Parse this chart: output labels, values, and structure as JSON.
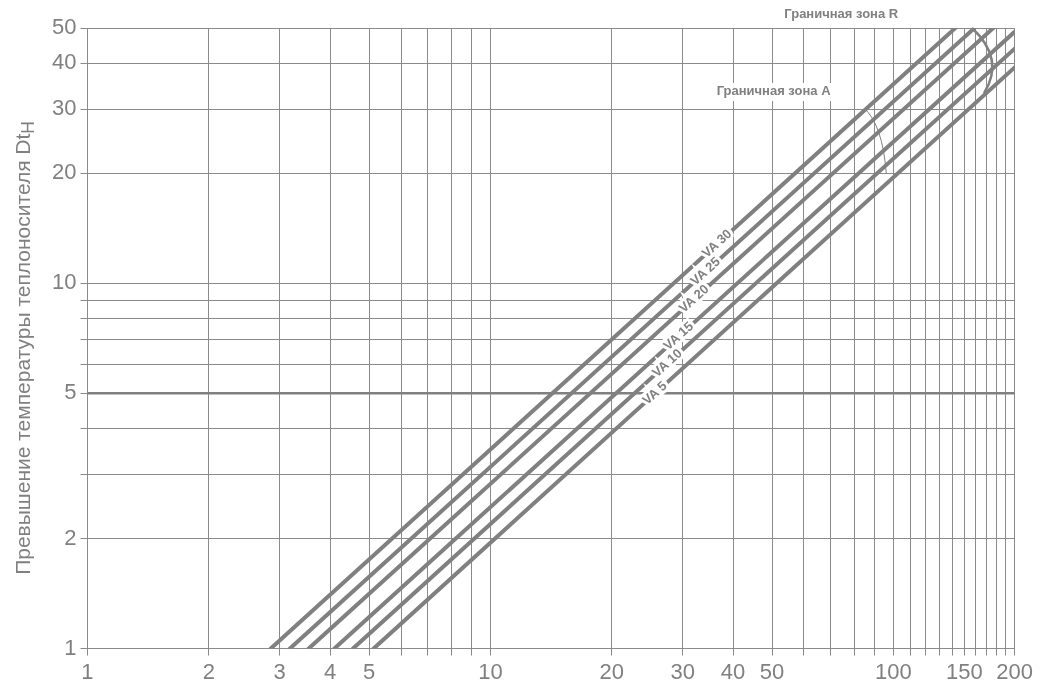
{
  "chart_data": {
    "type": "line",
    "ylabel": "Превышение температуры теплоносителя Dt$_{H}$",
    "log": "xy",
    "grid": true,
    "xlim": [
      1,
      200
    ],
    "ylim": [
      1,
      50
    ],
    "xticks": [
      1,
      2,
      3,
      4,
      5,
      {
        "value": 6,
        "label": null
      },
      {
        "value": 7,
        "label": null
      },
      {
        "value": 8,
        "label": null
      },
      {
        "value": 9,
        "label": null
      },
      10,
      20,
      30,
      40,
      50,
      {
        "value": 60,
        "label": null
      },
      {
        "value": 70,
        "label": null
      },
      {
        "value": 80,
        "label": null
      },
      {
        "value": 90,
        "label": null
      },
      100,
      {
        "value": 110,
        "label": null
      },
      {
        "value": 120,
        "label": null
      },
      {
        "value": 130,
        "label": null
      },
      {
        "value": 140,
        "label": null
      },
      150,
      {
        "value": 160,
        "label": null
      },
      {
        "value": 170,
        "label": null
      },
      {
        "value": 180,
        "label": null
      },
      {
        "value": 190,
        "label": null
      },
      200
    ],
    "yticks": [
      1,
      2,
      {
        "value": 3,
        "label": null
      },
      {
        "value": 4,
        "label": null
      },
      5,
      {
        "value": 6,
        "label": null
      },
      {
        "value": 7,
        "label": null
      },
      {
        "value": 8,
        "label": null
      },
      {
        "value": 9,
        "label": null
      },
      10,
      20,
      30,
      40,
      50
    ],
    "series": [
      {
        "name": "VA 30",
        "color": "#808080",
        "x": [
          2.85,
          142.5
        ],
        "values": [
          1,
          50
        ]
      },
      {
        "name": "VA 25",
        "color": "#808080",
        "x": [
          3.18,
          159
        ],
        "values": [
          1,
          50
        ]
      },
      {
        "name": "VA 20",
        "color": "#808080",
        "x": [
          3.54,
          177
        ],
        "values": [
          1,
          50
        ]
      },
      {
        "name": "VA 15",
        "color": "#808080",
        "x": [
          4.1,
          200
        ],
        "values": [
          1,
          48.8
        ]
      },
      {
        "name": "VA 10",
        "color": "#808080",
        "x": [
          4.56,
          200
        ],
        "values": [
          1,
          43.9
        ]
      },
      {
        "name": "VA 5",
        "color": "#808080",
        "x": [
          5.13,
          200
        ],
        "values": [
          1,
          39
        ]
      }
    ],
    "ref_lines": [
      {
        "axis": "y",
        "value": 5,
        "color": "#808080"
      }
    ],
    "annotations": [
      "Граничная зона R",
      "Граничная зона A"
    ]
  }
}
